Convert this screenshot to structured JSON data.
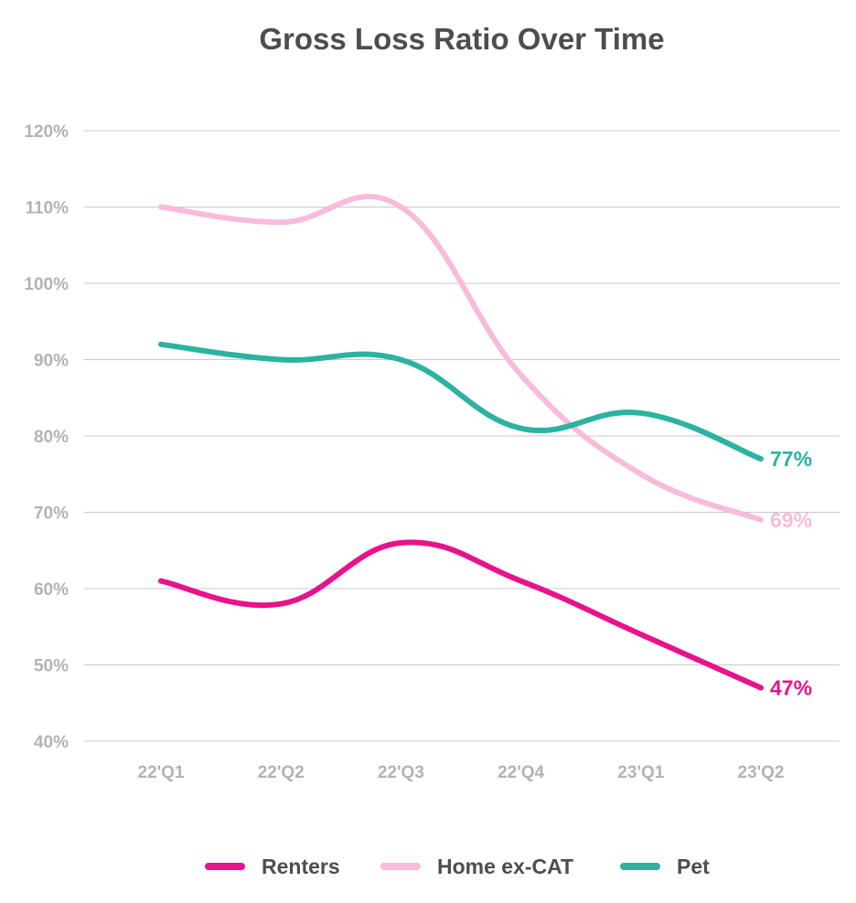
{
  "chart_data": {
    "type": "line",
    "title": "Gross Loss Ratio Over Time",
    "xlabel": "",
    "ylabel": "",
    "categories": [
      "22'Q1",
      "22'Q2",
      "22'Q3",
      "22'Q4",
      "23'Q1",
      "23'Q2"
    ],
    "yticks": [
      "40%",
      "50%",
      "60%",
      "70%",
      "80%",
      "90%",
      "100%",
      "110%",
      "120%"
    ],
    "ylim": [
      40,
      120
    ],
    "grid": true,
    "legend_position": "bottom",
    "series": [
      {
        "name": "Renters",
        "color": "#e8128c",
        "values": [
          61,
          58,
          66,
          61,
          54,
          47
        ],
        "end_label": "47%"
      },
      {
        "name": "Home ex-CAT",
        "color": "#f8bbdc",
        "values": [
          110,
          108,
          110,
          88,
          75,
          69
        ],
        "end_label": "69%"
      },
      {
        "name": "Pet",
        "color": "#2ab3a0",
        "values": [
          92,
          90,
          90,
          81,
          83,
          77
        ],
        "end_label": "77%"
      }
    ]
  }
}
